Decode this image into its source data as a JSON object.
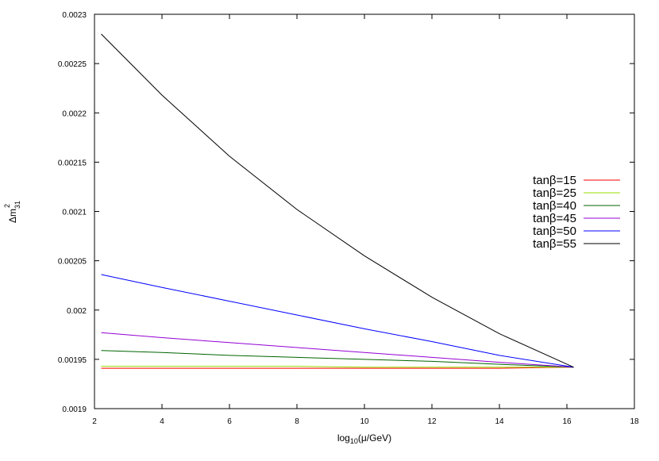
{
  "chart_data": {
    "type": "line",
    "title": "",
    "xlabel": {
      "base": "log",
      "sub": "10",
      "rest": "(μ/GeV)"
    },
    "ylabel": {
      "base": "Δm",
      "sub": "31",
      "sup": "2"
    },
    "xlim": [
      2,
      18
    ],
    "ylim": [
      0.0019,
      0.0023
    ],
    "xticks": [
      2,
      4,
      6,
      8,
      10,
      12,
      14,
      16,
      18
    ],
    "xtick_labels": [
      "2",
      "4",
      "6",
      "8",
      "10",
      "12",
      "14",
      "16",
      "18"
    ],
    "yticks": [
      0.0019,
      0.00195,
      0.002,
      0.00205,
      0.0021,
      0.00215,
      0.0022,
      0.00225,
      0.0023
    ],
    "ytick_labels": [
      "0.0019",
      "0.00195",
      "0.002",
      "0.00205",
      "0.0021",
      "0.00215",
      "0.0022",
      "0.00225",
      "0.0023"
    ],
    "grid": false,
    "legend_position": "right",
    "series": [
      {
        "name": "tanβ=15",
        "color": "#ff0000",
        "x": [
          2.2,
          4,
          6,
          8,
          10,
          12,
          14,
          16.2
        ],
        "y": [
          0.001941,
          0.001941,
          0.001941,
          0.001941,
          0.001941,
          0.001941,
          0.001941,
          0.001942
        ]
      },
      {
        "name": "tanβ=25",
        "color": "#99dd00",
        "x": [
          2.2,
          4,
          6,
          8,
          10,
          12,
          14,
          16.2
        ],
        "y": [
          0.001943,
          0.001943,
          0.001943,
          0.001943,
          0.001942,
          0.001942,
          0.001942,
          0.001942
        ]
      },
      {
        "name": "tanβ=40",
        "color": "#006400",
        "x": [
          2.2,
          4,
          6,
          8,
          10,
          12,
          14,
          16.2
        ],
        "y": [
          0.001959,
          0.001957,
          0.001954,
          0.001952,
          0.00195,
          0.001948,
          0.001945,
          0.001942
        ]
      },
      {
        "name": "tanβ=45",
        "color": "#9400d3",
        "x": [
          2.2,
          4,
          6,
          8,
          10,
          12,
          14,
          16.2
        ],
        "y": [
          0.001977,
          0.001972,
          0.001967,
          0.001962,
          0.001957,
          0.001952,
          0.001947,
          0.001942
        ]
      },
      {
        "name": "tanβ=50",
        "color": "#0000ff",
        "x": [
          2.2,
          4,
          6,
          8,
          10,
          12,
          14,
          16.2
        ],
        "y": [
          0.002036,
          0.002023,
          0.002009,
          0.001995,
          0.001981,
          0.001968,
          0.001954,
          0.001942
        ]
      },
      {
        "name": "tanβ=55",
        "color": "#000000",
        "x": [
          2.2,
          4,
          6,
          8,
          10,
          12,
          14,
          16.2
        ],
        "y": [
          0.00228,
          0.002218,
          0.002156,
          0.002102,
          0.002055,
          0.002013,
          0.001976,
          0.001942
        ]
      }
    ]
  }
}
